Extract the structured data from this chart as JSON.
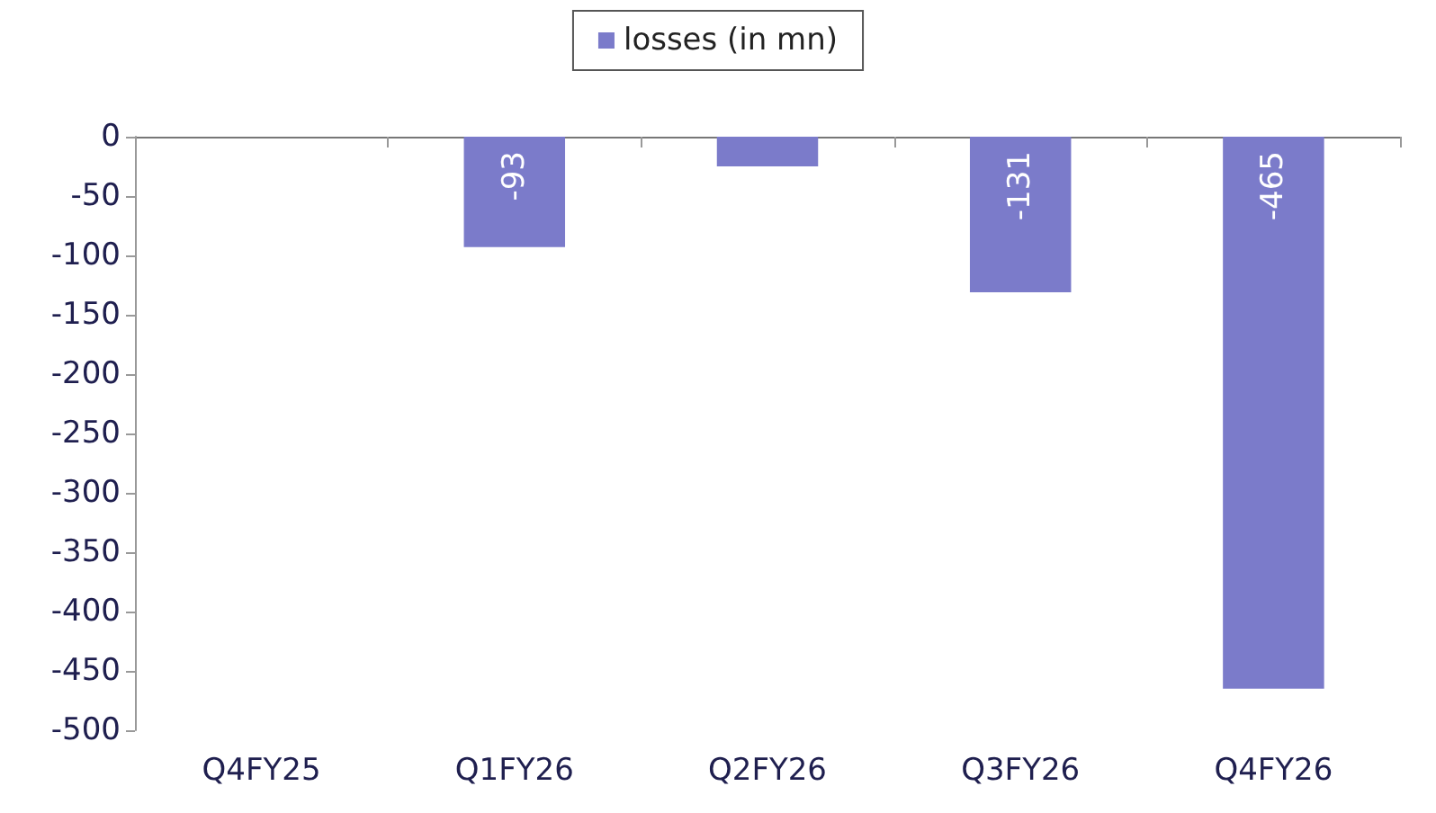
{
  "chart_data": {
    "type": "bar",
    "categories": [
      "Q4FY25",
      "Q1FY26",
      "Q2FY26",
      "Q3FY26",
      "Q4FY26"
    ],
    "series": [
      {
        "name": "losses (in mn)",
        "color": "#7b7bca",
        "values": [
          null,
          -93,
          -25,
          -131,
          -465
        ],
        "value_labels": [
          null,
          "-93",
          null,
          "-131",
          "-465"
        ]
      }
    ],
    "ylim": [
      -500,
      0
    ],
    "yticks": [
      -500,
      -450,
      -400,
      -350,
      -300,
      -250,
      -200,
      -150,
      -100,
      -50,
      0
    ],
    "grid": false,
    "legend": "top"
  }
}
